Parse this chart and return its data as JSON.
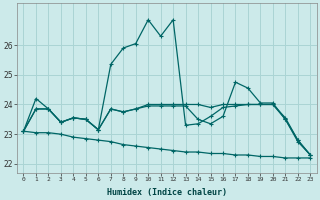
{
  "xlabel": "Humidex (Indice chaleur)",
  "xlim": [
    -0.5,
    23.5
  ],
  "ylim": [
    21.7,
    27.4
  ],
  "bg_color": "#cceaea",
  "grid_color": "#aad4d4",
  "line_color": "#006666",
  "series": [
    {
      "x": [
        0,
        1,
        2,
        3,
        4,
        5,
        6,
        7,
        8,
        9,
        10,
        11,
        12,
        13,
        14,
        15,
        16,
        17,
        18,
        19,
        20,
        21,
        22,
        23
      ],
      "y": [
        23.1,
        24.2,
        23.85,
        23.4,
        23.55,
        23.5,
        23.15,
        25.35,
        25.9,
        26.05,
        26.85,
        26.3,
        26.85,
        23.3,
        23.35,
        23.6,
        23.9,
        23.95,
        24.0,
        24.0,
        24.0,
        23.55,
        22.8,
        22.3
      ]
    },
    {
      "x": [
        0,
        1,
        2,
        3,
        4,
        5,
        6,
        7,
        8,
        9,
        10,
        11,
        12,
        13,
        14,
        15,
        16,
        17,
        18,
        19,
        20,
        21,
        22,
        23
      ],
      "y": [
        23.1,
        23.85,
        23.85,
        23.4,
        23.55,
        23.5,
        23.15,
        23.85,
        23.75,
        23.85,
        24.0,
        24.0,
        24.0,
        24.0,
        24.0,
        23.9,
        24.0,
        24.0,
        24.0,
        24.0,
        24.0,
        23.5,
        22.8,
        22.3
      ]
    },
    {
      "x": [
        0,
        1,
        2,
        3,
        4,
        5,
        6,
        7,
        8,
        9,
        10,
        11,
        12,
        13,
        14,
        15,
        16,
        17,
        18,
        19,
        20,
        21,
        22,
        23
      ],
      "y": [
        23.1,
        23.85,
        23.85,
        23.4,
        23.55,
        23.5,
        23.15,
        23.85,
        23.75,
        23.85,
        23.95,
        23.95,
        23.95,
        23.95,
        23.5,
        23.35,
        23.6,
        24.75,
        24.55,
        24.05,
        24.05,
        23.5,
        22.75,
        22.3
      ]
    },
    {
      "x": [
        0,
        1,
        2,
        3,
        4,
        5,
        6,
        7,
        8,
        9,
        10,
        11,
        12,
        13,
        14,
        15,
        16,
        17,
        18,
        19,
        20,
        21,
        22,
        23
      ],
      "y": [
        23.1,
        23.05,
        23.05,
        23.0,
        22.9,
        22.85,
        22.8,
        22.75,
        22.65,
        22.6,
        22.55,
        22.5,
        22.45,
        22.4,
        22.4,
        22.35,
        22.35,
        22.3,
        22.3,
        22.25,
        22.25,
        22.2,
        22.2,
        22.2
      ]
    }
  ],
  "ytick_values": [
    22,
    23,
    24,
    25,
    26
  ],
  "xtick_labels": [
    "0",
    "1",
    "2",
    "3",
    "4",
    "5",
    "6",
    "7",
    "8",
    "9",
    "10",
    "11",
    "12",
    "13",
    "14",
    "15",
    "16",
    "17",
    "18",
    "19",
    "20",
    "21",
    "22",
    "23"
  ]
}
